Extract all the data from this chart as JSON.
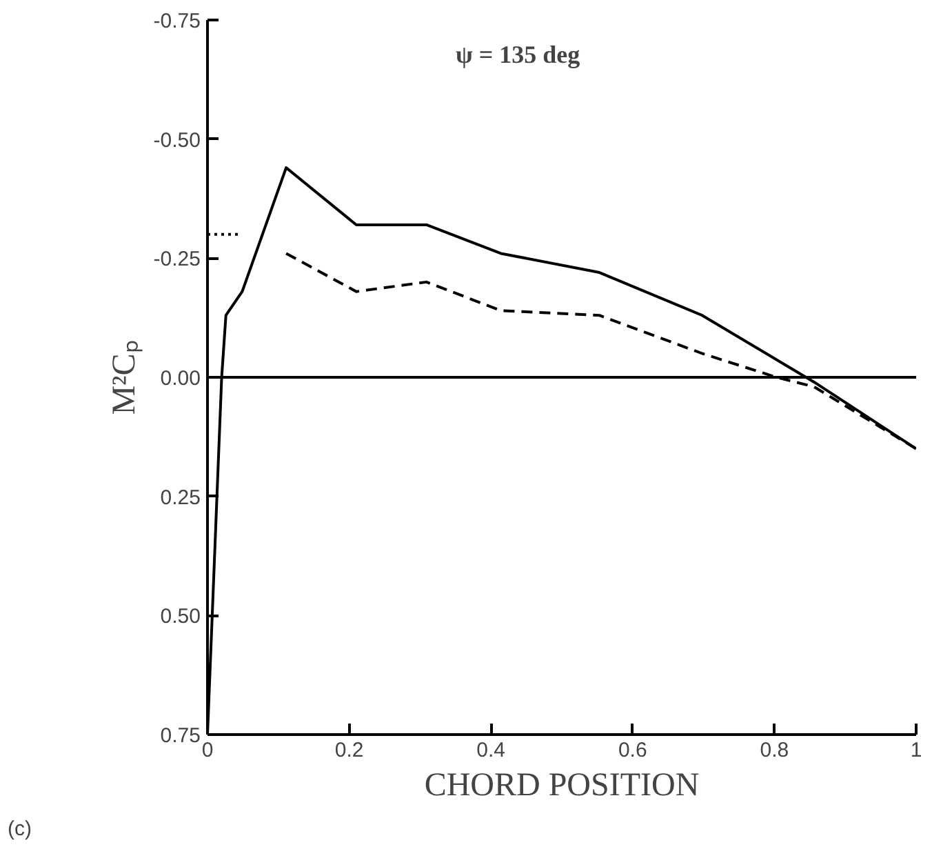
{
  "chart_data": {
    "type": "line",
    "title": "ψ = 135 deg",
    "xlabel": "CHORD POSITION",
    "ylabel": "M²Cₚ",
    "annotations": [
      "(c)"
    ],
    "xlim": [
      0,
      1
    ],
    "xticks": [
      0,
      0.2,
      0.4,
      0.6,
      0.8,
      1
    ],
    "ylim": [
      0.75,
      -0.75
    ],
    "yticks": [
      {
        "value": -0.75,
        "label": "-0.75"
      },
      {
        "value": -0.5,
        "label": "-0.50"
      },
      {
        "value": -0.25,
        "label": "-0.25"
      },
      {
        "value": 0,
        "label": "0.00"
      },
      {
        "value": 0.25,
        "label": "0.25"
      },
      {
        "value": 0.5,
        "label": "0.50"
      },
      {
        "value": 0.75,
        "label": "0.75"
      }
    ],
    "marker": "none",
    "ref_lines": [
      {
        "axis": "y",
        "value": 0,
        "color": "#000000",
        "line_style": "solid"
      }
    ],
    "series": [
      {
        "color": "#000000",
        "line_style": "solid",
        "x": [
          0.0,
          0.02,
          0.026,
          0.049,
          0.111,
          0.21,
          0.309,
          0.414,
          0.553,
          0.698,
          0.856,
          1.0
        ],
        "values": [
          0.75,
          0.0,
          -0.13,
          -0.18,
          -0.44,
          -0.32,
          -0.32,
          -0.26,
          -0.22,
          -0.13,
          0.01,
          0.15
        ]
      },
      {
        "color": "#000000",
        "line_style": "dashed",
        "x": [
          0.111,
          0.21,
          0.309,
          0.414,
          0.553,
          0.698,
          0.803,
          0.856,
          1.0
        ],
        "values": [
          -0.26,
          -0.18,
          -0.2,
          -0.14,
          -0.13,
          -0.05,
          0.0,
          0.02,
          0.15
        ]
      },
      {
        "color": "#000000",
        "line_style": "dotted",
        "x": [
          0.0,
          0.045
        ],
        "values": [
          -0.3,
          -0.3
        ]
      }
    ]
  }
}
